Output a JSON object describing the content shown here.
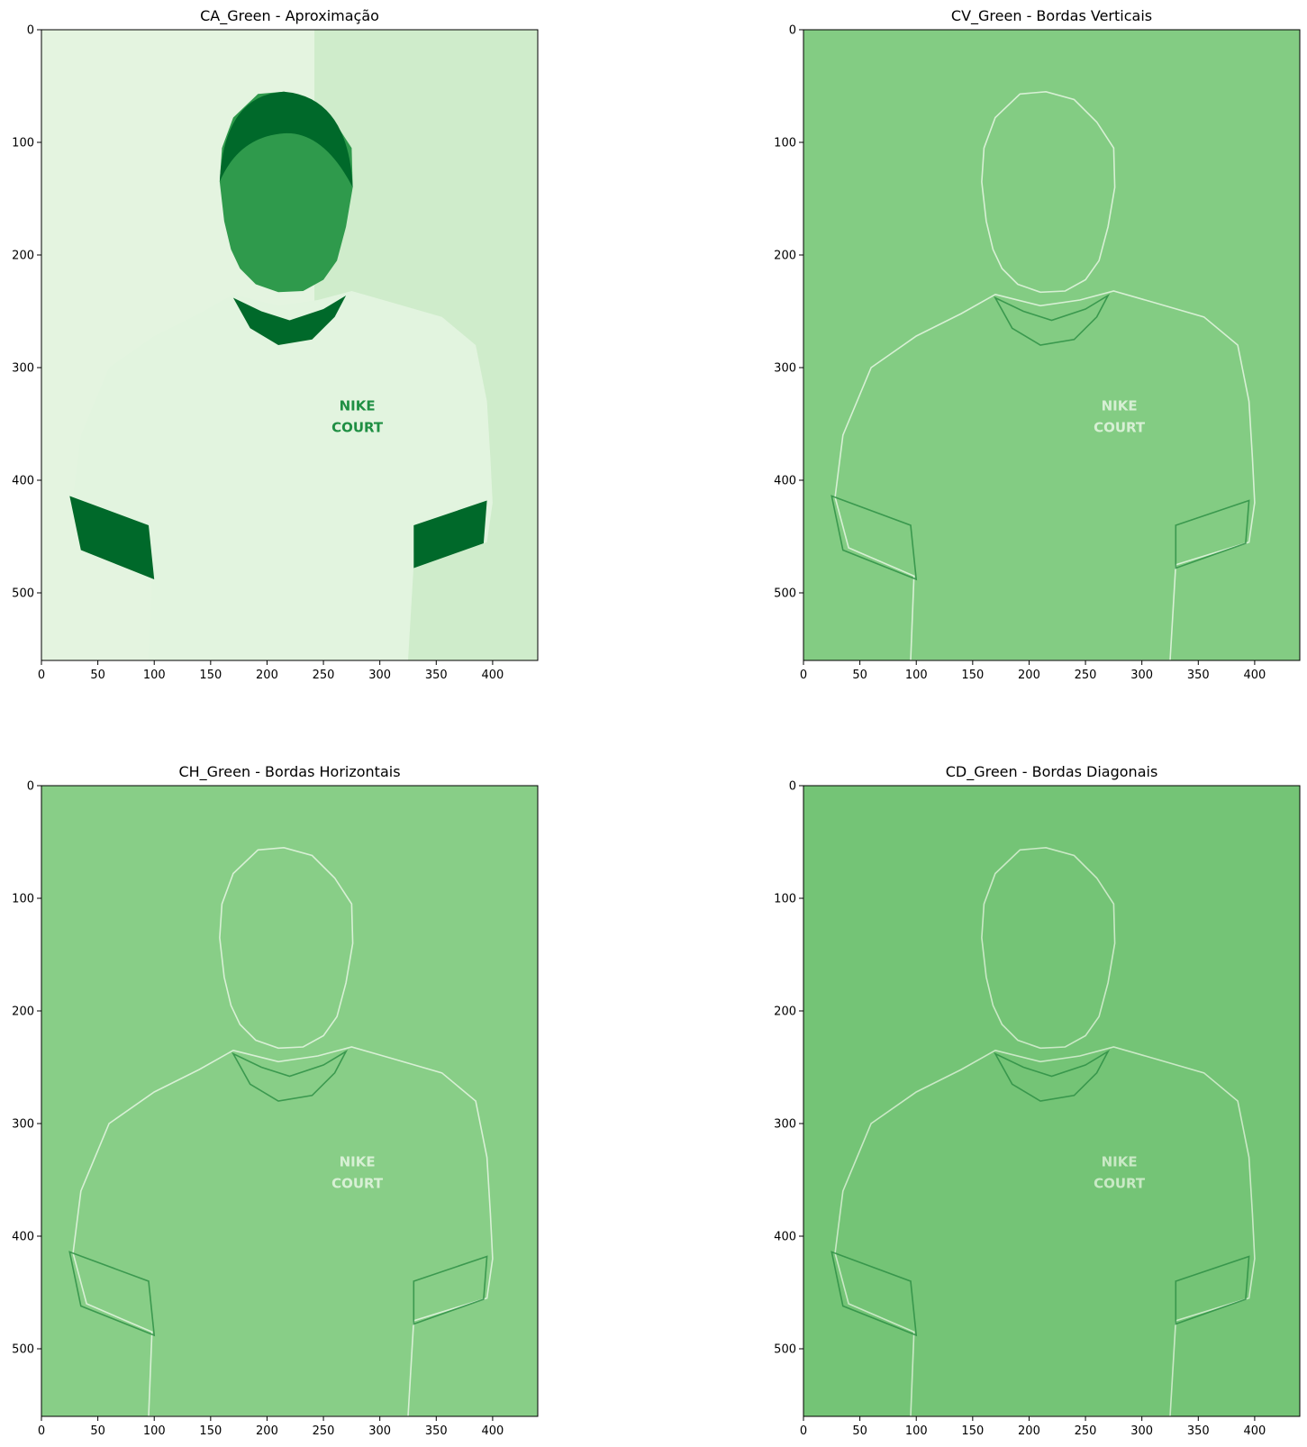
{
  "figure": {
    "panels": [
      {
        "id": "ca",
        "title": "CA_Green - Aproximação",
        "variant": "approximation",
        "colors": {
          "background": "#cfeccb",
          "dark": "#00692a",
          "shirt": "#e2f4df",
          "light": "#f1faef"
        },
        "xticks": [
          "0",
          "50",
          "100",
          "150",
          "200",
          "250",
          "300",
          "350",
          "400"
        ],
        "yticks": [
          "0",
          "100",
          "200",
          "300",
          "400",
          "500"
        ],
        "shirt_text": [
          "NIKE",
          "COURT"
        ]
      },
      {
        "id": "cv",
        "title": "CV_Green - Bordas Verticais",
        "variant": "edges",
        "colors": {
          "background": "#83cc83",
          "edge_light": "#e6f6e3",
          "edge_dark": "#2e8f45"
        },
        "xticks": [
          "0",
          "50",
          "100",
          "150",
          "200",
          "250",
          "300",
          "350",
          "400"
        ],
        "yticks": [
          "0",
          "100",
          "200",
          "300",
          "400",
          "500"
        ],
        "shirt_text": [
          "NIKE",
          "COURT"
        ]
      },
      {
        "id": "ch",
        "title": "CH_Green - Bordas Horizontais",
        "variant": "edges",
        "colors": {
          "background": "#88ce87",
          "edge_light": "#e6f6e3",
          "edge_dark": "#2e8f45"
        },
        "xticks": [
          "0",
          "50",
          "100",
          "150",
          "200",
          "250",
          "300",
          "350",
          "400"
        ],
        "yticks": [
          "0",
          "100",
          "200",
          "300",
          "400",
          "500"
        ],
        "shirt_text": [
          "NIKE",
          "COURT"
        ]
      },
      {
        "id": "cd",
        "title": "CD_Green - Bordas Diagonais",
        "variant": "edges",
        "colors": {
          "background": "#74c476",
          "edge_light": "#d9f0d5",
          "edge_dark": "#2e8f45"
        },
        "xticks": [
          "0",
          "50",
          "100",
          "150",
          "200",
          "250",
          "300",
          "350",
          "400"
        ],
        "yticks": [
          "0",
          "100",
          "200",
          "300",
          "400",
          "500"
        ],
        "shirt_text": [
          "NIKE",
          "COURT"
        ]
      }
    ]
  }
}
